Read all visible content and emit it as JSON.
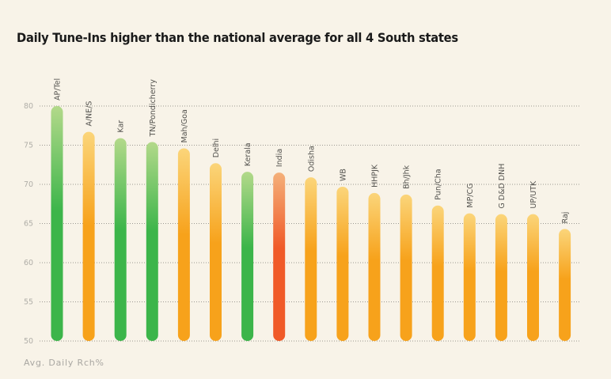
{
  "chart_data": {
    "type": "bar",
    "title": "Daily Tune-Ins higher than the national average for all 4 South states",
    "xlabel": "",
    "ylabel": "Avg. Daily Rch%",
    "ylim": [
      50,
      80
    ],
    "yticks": [
      50,
      55,
      60,
      65,
      70,
      75,
      80
    ],
    "grid": true,
    "categories": [
      "AP/Tel",
      "A/NE/S",
      "Kar",
      "TN/Pondicherry",
      "Mah/Goa",
      "Delhi",
      "Kerala",
      "India",
      "Odisha",
      "WB",
      "HHPJK",
      "Bh/Jhk",
      "Pun/Cha",
      "MP/CG",
      "G D&D DNH",
      "UP/UTK",
      "Raj"
    ],
    "values": [
      80.0,
      76.7,
      75.9,
      75.4,
      74.6,
      72.7,
      71.6,
      71.5,
      70.9,
      69.7,
      68.9,
      68.7,
      67.3,
      66.3,
      66.2,
      66.2,
      64.3
    ],
    "bar_groups": [
      "south",
      "other",
      "south",
      "south",
      "other",
      "other",
      "south",
      "national",
      "other",
      "other",
      "other",
      "other",
      "other",
      "other",
      "other",
      "other",
      "other"
    ],
    "colors": {
      "south": {
        "top": "#b3d98a",
        "bottom": "#3cb54a"
      },
      "other": {
        "top": "#fbd57a",
        "bottom": "#f7a21b"
      },
      "national": {
        "top": "#f4b07a",
        "bottom": "#f05a28"
      }
    }
  }
}
